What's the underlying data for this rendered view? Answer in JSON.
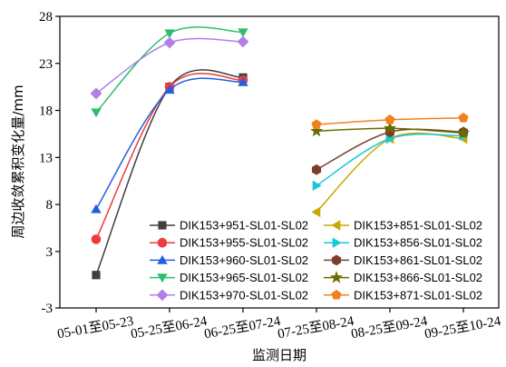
{
  "chart_data": {
    "type": "line",
    "title": "",
    "xlabel": "监测日期",
    "ylabel": "周边收敛累积变化量/mm",
    "categories": [
      "05-01至05-23",
      "05-25至06-24",
      "06-25至07-24",
      "07-25至08-24",
      "08-25至09-24",
      "09-25至10-24"
    ],
    "yticks": [
      -3,
      3,
      8,
      13,
      18,
      23,
      28
    ],
    "ylim": [
      -3,
      28
    ],
    "grid": false,
    "legend_placement": "bottom-right",
    "series": [
      {
        "name": "DIK153+951-SL01-SL02",
        "color": "#404040",
        "marker": "square",
        "values": [
          0.5,
          20.5,
          21.5,
          null,
          null,
          null
        ]
      },
      {
        "name": "DIK153+955-SL01-SL02",
        "color": "#ee3b3b",
        "marker": "circle",
        "values": [
          4.3,
          20.5,
          21.2,
          null,
          null,
          null
        ]
      },
      {
        "name": "DIK153+960-SL01-SL02",
        "color": "#2060e0",
        "marker": "triangle-up",
        "values": [
          7.5,
          20.2,
          21.0,
          null,
          null,
          null
        ]
      },
      {
        "name": "DIK153+965-SL01-SL02",
        "color": "#2ebd6e",
        "marker": "triangle-down",
        "values": [
          17.8,
          26.2,
          26.3,
          null,
          null,
          null
        ]
      },
      {
        "name": "DIK153+970-SL01-SL02",
        "color": "#b07fe8",
        "marker": "diamond",
        "values": [
          19.8,
          25.2,
          25.3,
          null,
          null,
          null
        ]
      },
      {
        "name": "DIK153+851-SL01-SL02",
        "color": "#c8a800",
        "marker": "triangle-left",
        "values": [
          null,
          null,
          null,
          7.2,
          15.0,
          15.0
        ]
      },
      {
        "name": "DIK153+856-SL01-SL02",
        "color": "#17c9d6",
        "marker": "triangle-right",
        "values": [
          null,
          null,
          null,
          10.0,
          15.0,
          15.3
        ]
      },
      {
        "name": "DIK153+861-SL01-SL02",
        "color": "#7a3f2c",
        "marker": "hexagon",
        "values": [
          null,
          null,
          null,
          11.7,
          15.7,
          15.7
        ]
      },
      {
        "name": "DIK153+866-SL01-SL02",
        "color": "#6b6b00",
        "marker": "star",
        "values": [
          null,
          null,
          null,
          15.8,
          16.1,
          15.6
        ]
      },
      {
        "name": "DIK153+871-SL01-SL02",
        "color": "#f28020",
        "marker": "pentagon",
        "values": [
          null,
          null,
          null,
          16.5,
          17.0,
          17.2
        ]
      }
    ]
  }
}
